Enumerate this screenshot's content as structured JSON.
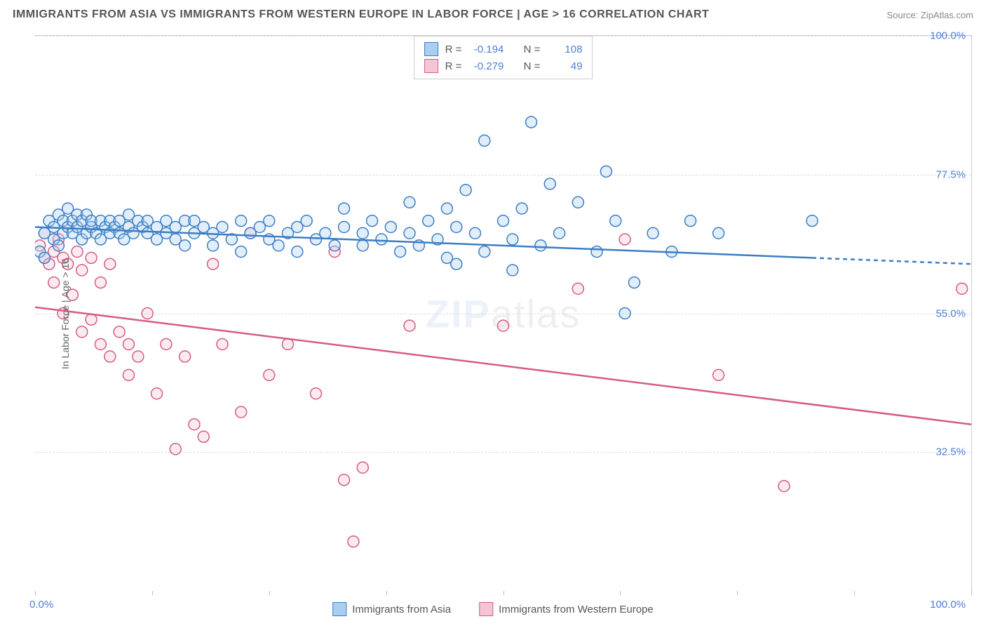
{
  "title": "IMMIGRANTS FROM ASIA VS IMMIGRANTS FROM WESTERN EUROPE IN LABOR FORCE | AGE > 16 CORRELATION CHART",
  "source": "Source: ZipAtlas.com",
  "watermark_bold": "ZIP",
  "watermark_light": "atlas",
  "ylabel": "In Labor Force | Age > 16",
  "chart": {
    "type": "scatter",
    "xlim": [
      0,
      100
    ],
    "ylim": [
      10,
      100
    ],
    "yticks": [
      32.5,
      55.0,
      77.5,
      100.0
    ],
    "ytick_labels": [
      "32.5%",
      "55.0%",
      "77.5%",
      "100.0%"
    ],
    "xtick_positions": [
      0,
      12.5,
      25,
      37.5,
      50,
      62.5,
      75,
      87.5,
      100
    ],
    "xtick_labels": {
      "min": "0.0%",
      "max": "100.0%"
    },
    "background_color": "#ffffff",
    "grid_color": "#dddddd",
    "axis_color": "#cccccc",
    "tick_label_color": "#4a7fd4",
    "label_fontsize": 14,
    "tick_fontsize": 15,
    "marker_radius": 8,
    "marker_stroke_width": 1.5,
    "marker_fill_opacity": 0.35,
    "trend_line_width": 2.5
  },
  "series": [
    {
      "name": "Immigrants from Asia",
      "color": "#5b9bd5",
      "fill": "#a8cef0",
      "stroke": "#3b7ec4",
      "stats": {
        "R": "-0.194",
        "N": "108"
      },
      "trend": {
        "x1": 0,
        "y1": 69,
        "x2": 83,
        "y2": 64,
        "dash_to_x": 100,
        "dash_to_y": 63
      },
      "points": [
        [
          0.5,
          65
        ],
        [
          1,
          64
        ],
        [
          1,
          68
        ],
        [
          1.5,
          70
        ],
        [
          2,
          69
        ],
        [
          2,
          67
        ],
        [
          2.5,
          66
        ],
        [
          2.5,
          71
        ],
        [
          3,
          70
        ],
        [
          3,
          68
        ],
        [
          3.5,
          69
        ],
        [
          3.5,
          72
        ],
        [
          4,
          70
        ],
        [
          4,
          68
        ],
        [
          4.5,
          71
        ],
        [
          4.5,
          69
        ],
        [
          5,
          70
        ],
        [
          5,
          67
        ],
        [
          5.5,
          68
        ],
        [
          5.5,
          71
        ],
        [
          6,
          69
        ],
        [
          6,
          70
        ],
        [
          6.5,
          68
        ],
        [
          7,
          70
        ],
        [
          7,
          67
        ],
        [
          7.5,
          69
        ],
        [
          8,
          70
        ],
        [
          8,
          68
        ],
        [
          8.5,
          69
        ],
        [
          9,
          70
        ],
        [
          9,
          68
        ],
        [
          9.5,
          67
        ],
        [
          10,
          69
        ],
        [
          10,
          71
        ],
        [
          10.5,
          68
        ],
        [
          11,
          70
        ],
        [
          11.5,
          69
        ],
        [
          12,
          68
        ],
        [
          12,
          70
        ],
        [
          13,
          69
        ],
        [
          13,
          67
        ],
        [
          14,
          70
        ],
        [
          14,
          68
        ],
        [
          15,
          69
        ],
        [
          15,
          67
        ],
        [
          16,
          70
        ],
        [
          16,
          66
        ],
        [
          17,
          68
        ],
        [
          17,
          70
        ],
        [
          18,
          69
        ],
        [
          19,
          68
        ],
        [
          19,
          66
        ],
        [
          20,
          69
        ],
        [
          21,
          67
        ],
        [
          22,
          70
        ],
        [
          22,
          65
        ],
        [
          23,
          68
        ],
        [
          24,
          69
        ],
        [
          25,
          67
        ],
        [
          25,
          70
        ],
        [
          26,
          66
        ],
        [
          27,
          68
        ],
        [
          28,
          69
        ],
        [
          28,
          65
        ],
        [
          29,
          70
        ],
        [
          30,
          67
        ],
        [
          31,
          68
        ],
        [
          32,
          66
        ],
        [
          33,
          72
        ],
        [
          33,
          69
        ],
        [
          35,
          68
        ],
        [
          35,
          66
        ],
        [
          36,
          70
        ],
        [
          37,
          67
        ],
        [
          38,
          69
        ],
        [
          39,
          65
        ],
        [
          40,
          68
        ],
        [
          40,
          73
        ],
        [
          41,
          66
        ],
        [
          42,
          70
        ],
        [
          43,
          67
        ],
        [
          44,
          72
        ],
        [
          44,
          64
        ],
        [
          45,
          69
        ],
        [
          45,
          63
        ],
        [
          46,
          75
        ],
        [
          47,
          68
        ],
        [
          48,
          65
        ],
        [
          48,
          83
        ],
        [
          50,
          70
        ],
        [
          51,
          67
        ],
        [
          51,
          62
        ],
        [
          52,
          72
        ],
        [
          53,
          86
        ],
        [
          54,
          66
        ],
        [
          55,
          76
        ],
        [
          56,
          68
        ],
        [
          58,
          73
        ],
        [
          60,
          65
        ],
        [
          61,
          78
        ],
        [
          62,
          70
        ],
        [
          63,
          55
        ],
        [
          64,
          60
        ],
        [
          66,
          68
        ],
        [
          68,
          65
        ],
        [
          70,
          70
        ],
        [
          73,
          68
        ],
        [
          83,
          70
        ]
      ]
    },
    {
      "name": "Immigrants from Western Europe",
      "color": "#e07ba0",
      "fill": "#f4c5d7",
      "stroke": "#d55b87",
      "stats": {
        "R": "-0.279",
        "N": "49"
      },
      "trend": {
        "x1": 0,
        "y1": 56,
        "x2": 100,
        "y2": 37
      },
      "points": [
        [
          0.5,
          66
        ],
        [
          1,
          64
        ],
        [
          1,
          68
        ],
        [
          1.5,
          63
        ],
        [
          2,
          65
        ],
        [
          2,
          60
        ],
        [
          2.5,
          67
        ],
        [
          3,
          64
        ],
        [
          3,
          55
        ],
        [
          3.5,
          63
        ],
        [
          4,
          58
        ],
        [
          4.5,
          65
        ],
        [
          5,
          52
        ],
        [
          5,
          62
        ],
        [
          6,
          54
        ],
        [
          6,
          64
        ],
        [
          7,
          50
        ],
        [
          7,
          60
        ],
        [
          8,
          48
        ],
        [
          8,
          63
        ],
        [
          9,
          52
        ],
        [
          10,
          45
        ],
        [
          10,
          50
        ],
        [
          11,
          48
        ],
        [
          12,
          55
        ],
        [
          13,
          42
        ],
        [
          14,
          50
        ],
        [
          15,
          33
        ],
        [
          16,
          48
        ],
        [
          17,
          37
        ],
        [
          18,
          35
        ],
        [
          19,
          63
        ],
        [
          20,
          50
        ],
        [
          22,
          39
        ],
        [
          23,
          68
        ],
        [
          25,
          45
        ],
        [
          27,
          50
        ],
        [
          30,
          42
        ],
        [
          32,
          65
        ],
        [
          33,
          28
        ],
        [
          34,
          18
        ],
        [
          35,
          30
        ],
        [
          40,
          53
        ],
        [
          50,
          53
        ],
        [
          58,
          59
        ],
        [
          63,
          67
        ],
        [
          73,
          45
        ],
        [
          80,
          27
        ],
        [
          99,
          59
        ]
      ]
    }
  ],
  "stats_labels": {
    "r": "R =",
    "n": "N ="
  }
}
